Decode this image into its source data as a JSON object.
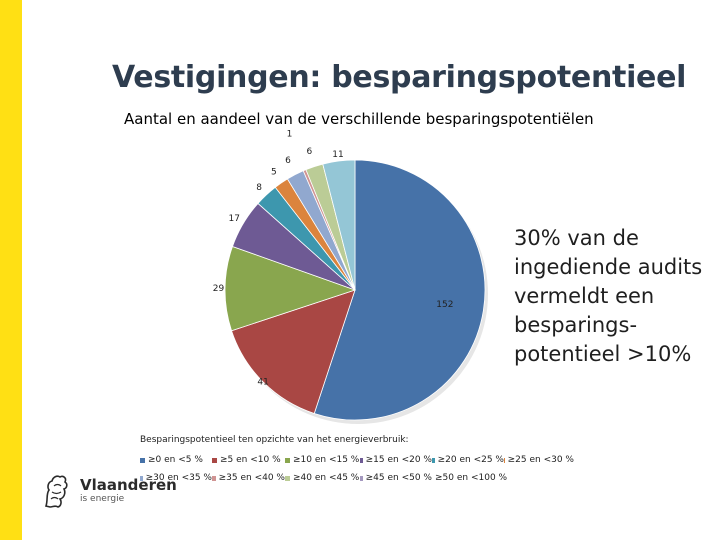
{
  "title": "Vestigingen: besparingspotentieel",
  "subtitle": "Aantal en aandeel van de verschillende besparingspotentiëlen",
  "callout": "30% van de ingediende audits vermeldt een besparings-potentieel >10%",
  "legend_title": "Besparingspotentieel ten opzichte van het energieverbruik:",
  "logo": {
    "name": "Vlaanderen",
    "tagline": "is energie",
    "icon": "flemish-lion-icon"
  },
  "chart_data": {
    "type": "pie",
    "title": "",
    "start_angle_deg": 0,
    "direction": "clockwise",
    "slices": [
      {
        "label": "≥0 en <5 %",
        "value": 152,
        "color": "#4672a8"
      },
      {
        "label": "≥5 en <10 %",
        "value": 41,
        "color": "#a94744"
      },
      {
        "label": "≥10 en <15 %",
        "value": 29,
        "color": "#89a64e"
      },
      {
        "label": "≥15 en <20 %",
        "value": 17,
        "color": "#6e5a94"
      },
      {
        "label": "≥20 en <25 %",
        "value": 8,
        "color": "#3d97ae"
      },
      {
        "label": "≥25 en <30 %",
        "value": 5,
        "color": "#db843d"
      },
      {
        "label": "≥30 en <35 %",
        "value": 6,
        "color": "#91a8cf"
      },
      {
        "label": "≥35 en <40 %",
        "value": 1,
        "color": "#d09493"
      },
      {
        "label": "≥40 en <45 %",
        "value": 6,
        "color": "#bbcc96"
      },
      {
        "label": "≥45 en <50 %",
        "value": 0,
        "color": "#a498bf"
      },
      {
        "label": "≥50 en <100 %",
        "value": 11,
        "color": "#94c6d6"
      }
    ],
    "legend_placement": "bottom"
  }
}
